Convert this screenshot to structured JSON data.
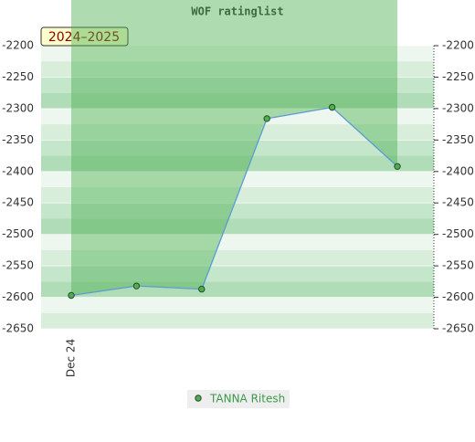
{
  "chart_data": {
    "type": "line",
    "title": "WOF ratinglist",
    "period": "2024–2025",
    "categories": [
      "Dec 24",
      null,
      null,
      null,
      null,
      null
    ],
    "series": [
      {
        "name": "TANNA Ritesh",
        "color": "#5b9bd5",
        "values": [
          -2597,
          -2582,
          -2587,
          -2316,
          -2298,
          -2392
        ]
      }
    ],
    "ylim": [
      -2650,
      -2200
    ],
    "yticks": [
      -2200,
      -2250,
      -2300,
      -2350,
      -2400,
      -2450,
      -2500,
      -2550,
      -2600,
      -2650
    ],
    "grid": true
  }
}
